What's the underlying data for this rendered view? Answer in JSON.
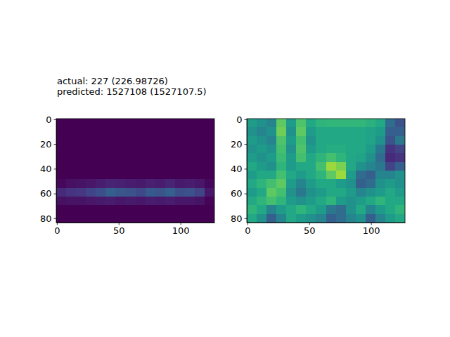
{
  "chart_data": [
    {
      "type": "heatmap",
      "title": "actual: 227 (226.98726)",
      "subtitle": "predicted: 1527108 (1527107.5)",
      "color": "viridis",
      "xlim": [
        -0.5,
        127.5
      ],
      "ylim": [
        83.5,
        -0.5
      ],
      "xticks": [
        0,
        50,
        100
      ],
      "yticks": [
        0,
        20,
        40,
        60,
        80
      ],
      "zlim": [
        0,
        1
      ],
      "cells": [
        [
          0,
          0,
          0,
          0,
          0,
          0,
          0,
          0,
          0,
          0,
          0,
          0,
          0,
          0,
          0,
          0
        ],
        [
          0,
          0,
          0,
          0,
          0,
          0,
          0,
          0,
          0,
          0,
          0,
          0,
          0,
          0,
          0,
          0
        ],
        [
          0,
          0,
          0,
          0,
          0,
          0,
          0,
          0,
          0,
          0,
          0,
          0,
          0,
          0,
          0,
          0
        ],
        [
          0,
          0,
          0,
          0,
          0,
          0,
          0,
          0,
          0,
          0,
          0,
          0,
          0,
          0,
          0,
          0
        ],
        [
          0,
          0,
          0,
          0,
          0,
          0,
          0,
          0,
          0,
          0,
          0,
          0,
          0,
          0,
          0,
          0
        ],
        [
          0,
          0,
          0,
          0,
          0,
          0,
          0,
          0,
          0,
          0,
          0,
          0,
          0,
          0,
          0,
          0
        ],
        [
          0,
          0,
          0,
          0,
          0,
          0,
          0,
          0,
          0,
          0,
          0,
          0,
          0,
          0,
          0,
          0
        ],
        [
          0.02,
          0.04,
          0.05,
          0.06,
          0.08,
          0.1,
          0.09,
          0.08,
          0.07,
          0.09,
          0.08,
          0.1,
          0.07,
          0.08,
          0.06,
          0.02
        ],
        [
          0.12,
          0.15,
          0.16,
          0.2,
          0.24,
          0.3,
          0.27,
          0.25,
          0.22,
          0.28,
          0.26,
          0.3,
          0.24,
          0.25,
          0.2,
          0.06
        ],
        [
          0.04,
          0.05,
          0.05,
          0.06,
          0.07,
          0.08,
          0.06,
          0.07,
          0.06,
          0.08,
          0.07,
          0.08,
          0.06,
          0.06,
          0.05,
          0.01
        ],
        [
          0,
          0,
          0,
          0,
          0,
          0,
          0,
          0,
          0,
          0,
          0,
          0,
          0,
          0,
          0,
          0
        ],
        [
          0,
          0,
          0,
          0,
          0,
          0,
          0,
          0,
          0,
          0,
          0,
          0,
          0,
          0,
          0,
          0
        ]
      ]
    },
    {
      "type": "heatmap",
      "color": "viridis",
      "xlim": [
        -0.5,
        127.5
      ],
      "ylim": [
        83.5,
        -0.5
      ],
      "xticks": [
        0,
        50,
        100
      ],
      "yticks": [
        0,
        20,
        40,
        60,
        80
      ],
      "zlim": [
        0,
        1
      ],
      "cells": [
        [
          0.55,
          0.5,
          0.45,
          0.75,
          0.55,
          0.72,
          0.6,
          0.65,
          0.66,
          0.66,
          0.66,
          0.66,
          0.64,
          0.6,
          0.35,
          0.25
        ],
        [
          0.5,
          0.45,
          0.5,
          0.78,
          0.5,
          0.75,
          0.55,
          0.6,
          0.6,
          0.6,
          0.6,
          0.6,
          0.58,
          0.55,
          0.3,
          0.3
        ],
        [
          0.55,
          0.5,
          0.45,
          0.72,
          0.55,
          0.7,
          0.5,
          0.6,
          0.6,
          0.6,
          0.6,
          0.6,
          0.58,
          0.5,
          0.25,
          0.4
        ],
        [
          0.5,
          0.55,
          0.5,
          0.7,
          0.5,
          0.72,
          0.55,
          0.6,
          0.62,
          0.62,
          0.6,
          0.6,
          0.55,
          0.4,
          0.15,
          0.2
        ],
        [
          0.55,
          0.5,
          0.55,
          0.68,
          0.55,
          0.7,
          0.6,
          0.65,
          0.7,
          0.65,
          0.6,
          0.58,
          0.5,
          0.35,
          0.12,
          0.15
        ],
        [
          0.6,
          0.55,
          0.5,
          0.65,
          0.55,
          0.6,
          0.6,
          0.7,
          0.85,
          0.8,
          0.6,
          0.5,
          0.45,
          0.4,
          0.2,
          0.3
        ],
        [
          0.55,
          0.6,
          0.6,
          0.7,
          0.6,
          0.55,
          0.6,
          0.65,
          0.75,
          0.85,
          0.55,
          0.35,
          0.3,
          0.45,
          0.45,
          0.5
        ],
        [
          0.6,
          0.65,
          0.7,
          0.75,
          0.55,
          0.45,
          0.55,
          0.6,
          0.6,
          0.55,
          0.5,
          0.3,
          0.35,
          0.5,
          0.55,
          0.5
        ],
        [
          0.55,
          0.6,
          0.75,
          0.7,
          0.5,
          0.4,
          0.5,
          0.55,
          0.6,
          0.6,
          0.55,
          0.45,
          0.5,
          0.55,
          0.6,
          0.55
        ],
        [
          0.6,
          0.65,
          0.7,
          0.65,
          0.55,
          0.5,
          0.55,
          0.6,
          0.65,
          0.55,
          0.5,
          0.55,
          0.6,
          0.65,
          0.6,
          0.6
        ],
        [
          0.65,
          0.6,
          0.45,
          0.55,
          0.6,
          0.65,
          0.6,
          0.55,
          0.4,
          0.35,
          0.5,
          0.6,
          0.45,
          0.55,
          0.6,
          0.65
        ],
        [
          0.6,
          0.5,
          0.3,
          0.45,
          0.6,
          0.55,
          0.5,
          0.45,
          0.3,
          0.35,
          0.45,
          0.5,
          0.3,
          0.45,
          0.55,
          0.6
        ]
      ]
    }
  ]
}
